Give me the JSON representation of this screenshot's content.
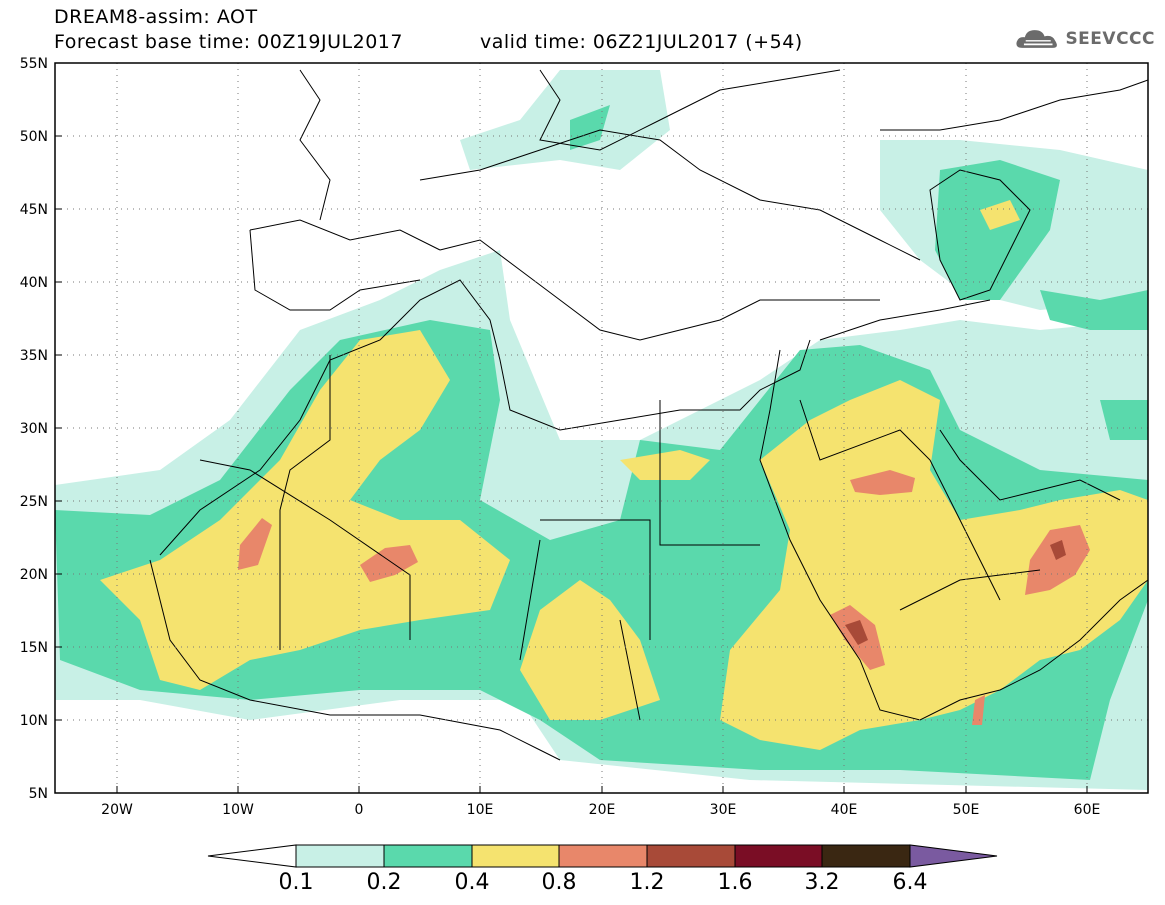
{
  "title": {
    "line1": "DREAM8-assim: AOT",
    "line2": "Forecast base time: 00Z19JUL2017",
    "valid": "valid time: 06Z21JUL2017 (+54)"
  },
  "logo": {
    "text": "SEEVCCC",
    "icon": "cloud-logo-icon"
  },
  "map": {
    "lat_labels": [
      "55N",
      "50N",
      "45N",
      "40N",
      "35N",
      "30N",
      "25N",
      "20N",
      "15N",
      "10N",
      "5N"
    ],
    "lon_labels": [
      "20W",
      "10W",
      "0",
      "10E",
      "20E",
      "30E",
      "40E",
      "50E",
      "60E"
    ],
    "extent": {
      "lon_min": -25,
      "lon_max": 65,
      "lat_min": 5,
      "lat_max": 55
    },
    "grid": "dotted"
  },
  "colorbar": {
    "colors": [
      "#ffffff",
      "#c8f0e6",
      "#5ad9ac",
      "#f5e36f",
      "#e8876a",
      "#a84a38",
      "#7a0d25",
      "#3a2712",
      "#7a5aa0"
    ],
    "labels": [
      "0.1",
      "0.2",
      "0.4",
      "0.8",
      "1.2",
      "1.6",
      "3.2",
      "6.4"
    ]
  }
}
